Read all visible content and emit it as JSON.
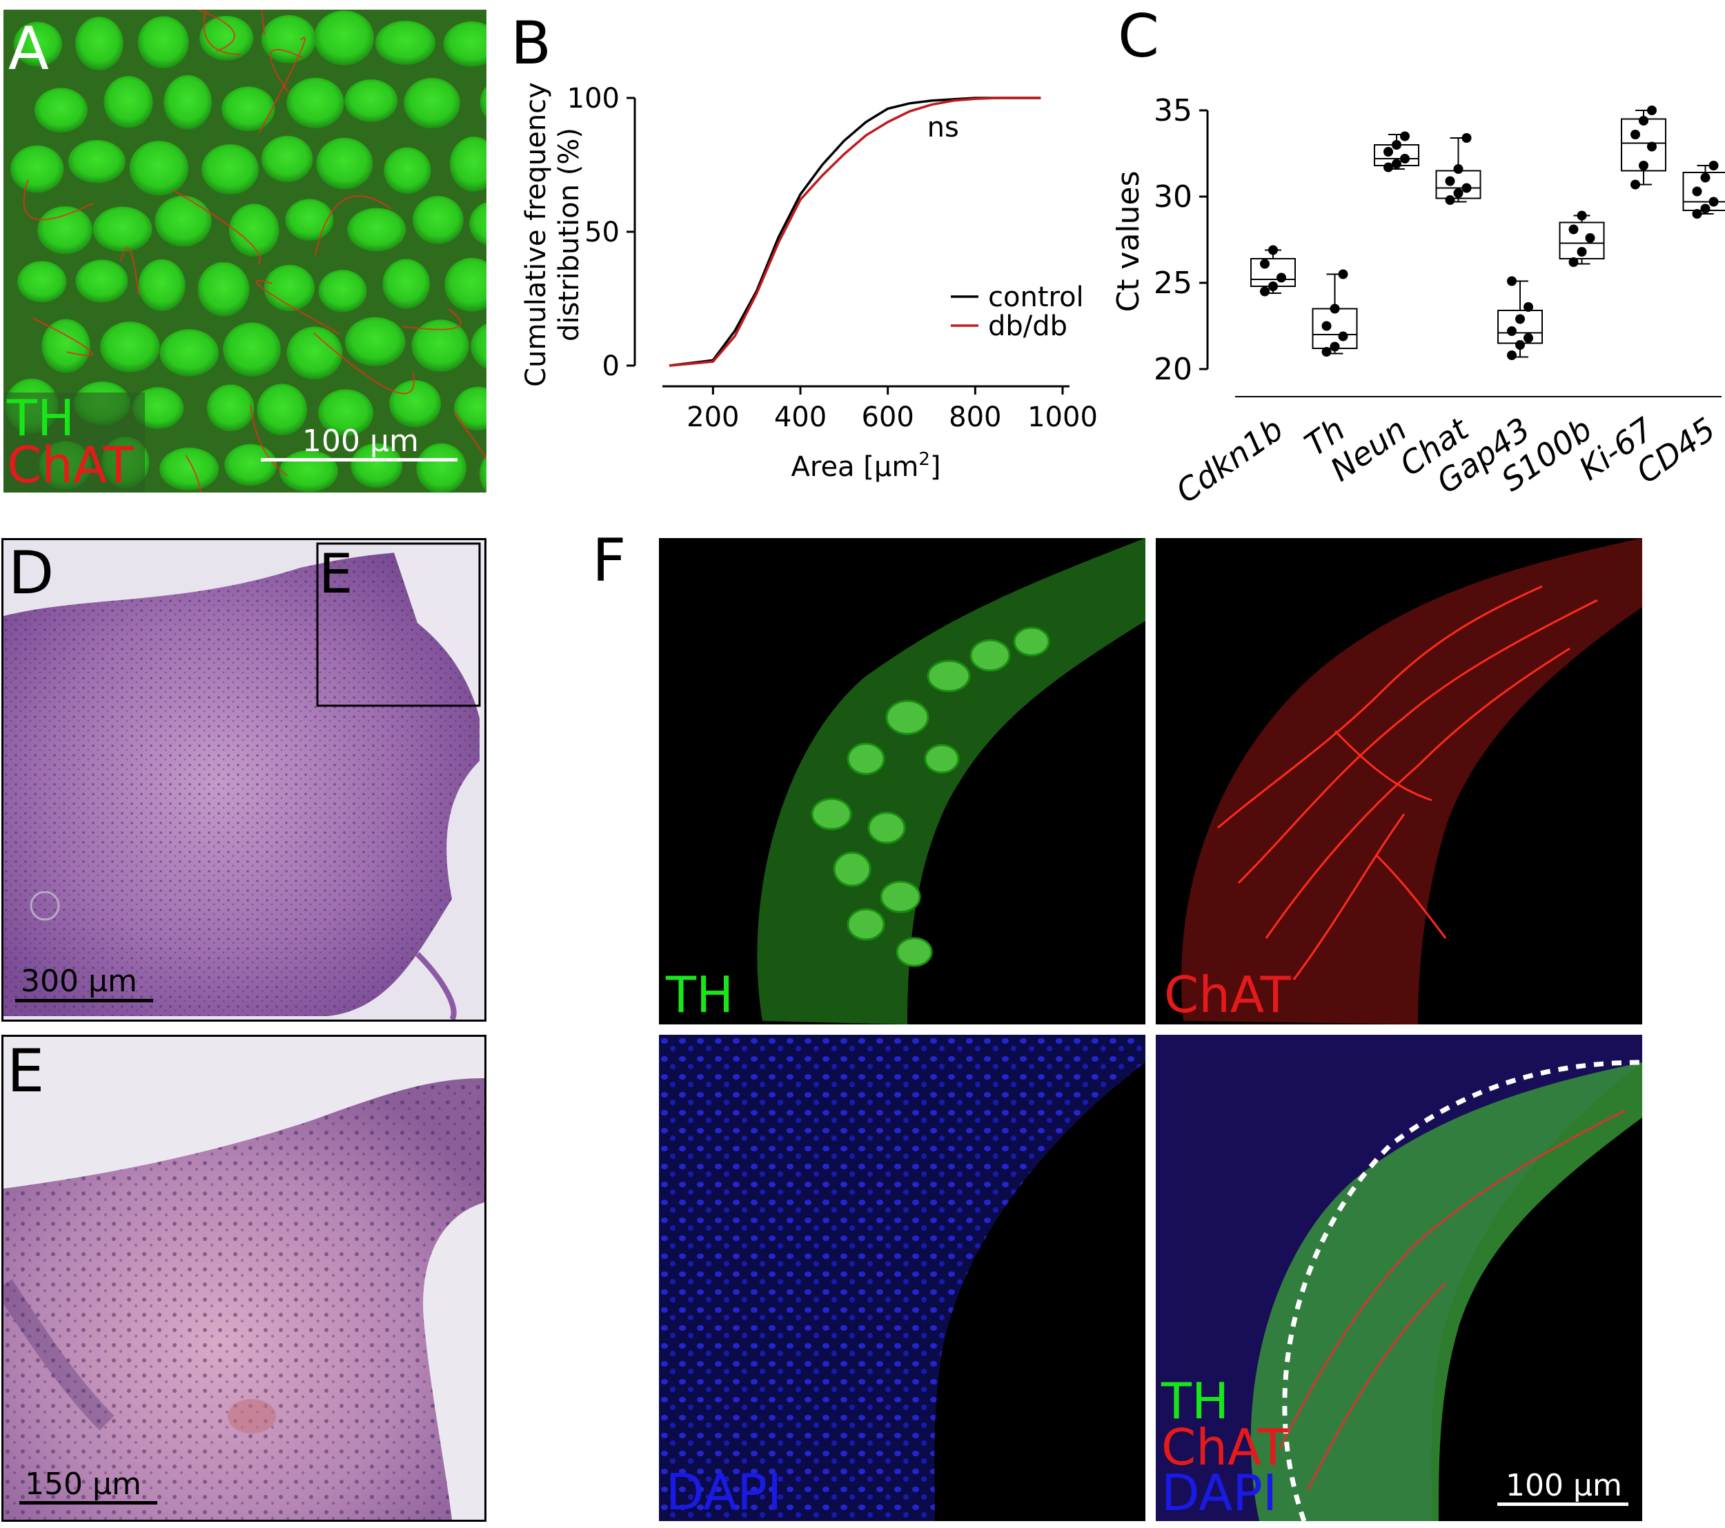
{
  "panels": {
    "A": {
      "letter": "A",
      "channel_labels": [
        "TH",
        "ChAT"
      ],
      "channel_colors": [
        "#19e619",
        "#e61a1a"
      ],
      "scale_bar": "100 µm"
    },
    "B": {
      "letter": "B",
      "annotation": "ns",
      "ylabel_lines": [
        "Cumulative frequency",
        "distribution (%)"
      ],
      "xlabel": "Area [µm²]",
      "xlabel_base": "Area [",
      "xlabel_unit": "µm",
      "xlabel_sup": "2",
      "xlabel_close": "]",
      "legend": [
        "control",
        "db/db"
      ]
    },
    "C": {
      "letter": "C",
      "ylabel": "Ct values"
    },
    "D": {
      "letter": "D",
      "inset_label": "E",
      "scale_bar": "300 µm"
    },
    "E": {
      "letter": "E",
      "scale_bar": "150 µm"
    },
    "F": {
      "letter": "F",
      "tiles": [
        {
          "labels": [
            "TH"
          ],
          "colors": [
            "#19e619"
          ]
        },
        {
          "labels": [
            "ChAT"
          ],
          "colors": [
            "#e61a1a"
          ]
        },
        {
          "labels": [
            "DAPI"
          ],
          "colors": [
            "#1a1ae6"
          ]
        },
        {
          "labels": [
            "TH",
            "ChAT",
            "DAPI"
          ],
          "colors": [
            "#19e619",
            "#e61a1a",
            "#1a1ae6"
          ]
        }
      ],
      "scale_bar": "100 µm"
    }
  },
  "chart_data": [
    {
      "panel": "B",
      "type": "line",
      "xlabel": "Area [µm²]",
      "ylabel": "Cumulative frequency distribution (%)",
      "xlim": [
        100,
        1000
      ],
      "ylim": [
        0,
        100
      ],
      "xticks": [
        200,
        400,
        600,
        800,
        1000
      ],
      "yticks": [
        0,
        50,
        100
      ],
      "annotation": "ns",
      "legend_position": "center-right",
      "series": [
        {
          "name": "control",
          "color": "#000000",
          "x": [
            100,
            200,
            250,
            300,
            350,
            400,
            450,
            500,
            550,
            600,
            650,
            700,
            750,
            800,
            850,
            900,
            950
          ],
          "y": [
            0,
            2,
            13,
            28,
            48,
            64,
            75,
            84,
            91,
            96,
            98,
            99,
            99.5,
            100,
            100,
            100,
            100
          ]
        },
        {
          "name": "db/db",
          "color": "#c0191e",
          "x": [
            100,
            200,
            250,
            300,
            350,
            400,
            450,
            500,
            550,
            600,
            650,
            700,
            750,
            800,
            850,
            900,
            950
          ],
          "y": [
            0,
            1.5,
            11,
            27,
            46,
            62,
            71,
            79,
            86,
            91,
            95,
            97.5,
            99,
            99.7,
            100,
            100,
            100
          ]
        }
      ]
    },
    {
      "panel": "C",
      "type": "box",
      "ylabel": "Ct values",
      "ylim": [
        20,
        35
      ],
      "yticks": [
        20,
        25,
        30,
        35
      ],
      "categories": [
        "Cdkn1b",
        "Th",
        "Neun",
        "Chat",
        "Gap43",
        "S100b",
        "Ki-67",
        "CD45"
      ],
      "boxes": [
        {
          "q1": 24.8,
          "median": 25.2,
          "q3": 26.4,
          "min": 24.4,
          "max": 26.9,
          "points": [
            24.5,
            24.8,
            25.3,
            26.1,
            26.9
          ]
        },
        {
          "q1": 21.2,
          "median": 22.0,
          "q3": 23.5,
          "min": 20.9,
          "max": 25.5,
          "points": [
            21.0,
            21.3,
            21.9,
            22.5,
            23.5,
            25.5
          ]
        },
        {
          "q1": 31.8,
          "median": 32.2,
          "q3": 33.0,
          "min": 31.6,
          "max": 33.6,
          "points": [
            31.7,
            31.9,
            32.2,
            32.6,
            33.0,
            33.5
          ]
        },
        {
          "q1": 29.9,
          "median": 30.5,
          "q3": 31.5,
          "min": 29.7,
          "max": 33.4,
          "points": [
            29.8,
            30.2,
            30.5,
            30.9,
            31.6,
            33.4
          ]
        },
        {
          "q1": 21.5,
          "median": 22.1,
          "q3": 23.4,
          "min": 20.7,
          "max": 25.1,
          "points": [
            20.8,
            21.4,
            21.8,
            22.2,
            22.9,
            23.6,
            25.1
          ]
        },
        {
          "q1": 26.4,
          "median": 27.3,
          "q3": 28.5,
          "min": 26.1,
          "max": 28.9,
          "points": [
            26.2,
            26.8,
            27.6,
            28.1,
            28.9
          ]
        },
        {
          "q1": 31.5,
          "median": 33.1,
          "q3": 34.5,
          "min": 30.7,
          "max": 35.0,
          "points": [
            30.7,
            31.8,
            32.9,
            33.6,
            34.4,
            35.0
          ]
        },
        {
          "q1": 29.2,
          "median": 29.7,
          "q3": 31.4,
          "min": 29.0,
          "max": 31.8,
          "points": [
            29.0,
            29.3,
            29.7,
            30.3,
            31.1,
            31.8
          ]
        }
      ]
    }
  ]
}
